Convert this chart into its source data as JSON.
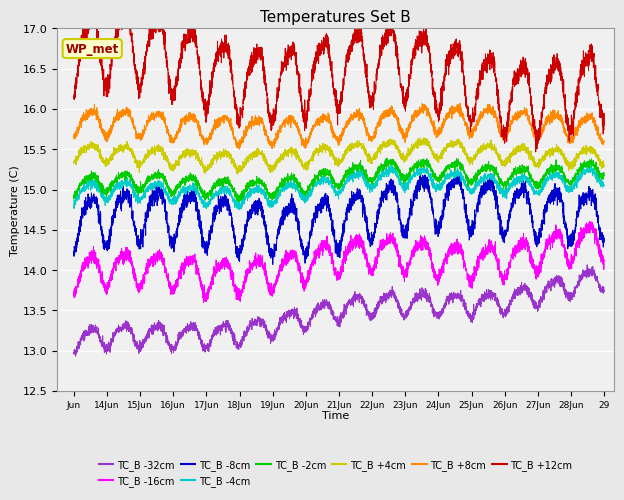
{
  "title": "Temperatures Set B",
  "xlabel": "Time",
  "ylabel": "Temperature (C)",
  "ylim": [
    12.5,
    17.0
  ],
  "yticks": [
    12.5,
    13.0,
    13.5,
    14.0,
    14.5,
    15.0,
    15.5,
    16.0,
    16.5,
    17.0
  ],
  "xtick_labels": [
    "Jun",
    "14Jun",
    "15Jun",
    "16Jun",
    "17Jun",
    "18Jun",
    "19Jun",
    "20Jun",
    "21Jun",
    "22Jun",
    "23Jun",
    "24Jun",
    "25Jun",
    "26Jun",
    "27Jun",
    "28Jun",
    "29"
  ],
  "series": [
    {
      "label": "TC_B -32cm",
      "color": "#9933CC",
      "base": 13.05,
      "trend": 0.05,
      "amp": 0.13,
      "noise": 0.03,
      "slow_amp": 0.08,
      "slow_period": 8.0,
      "slow_phase": 1.0
    },
    {
      "label": "TC_B -16cm",
      "color": "#FF00FF",
      "base": 13.9,
      "trend": 0.025,
      "amp": 0.2,
      "noise": 0.04,
      "slow_amp": 0.1,
      "slow_period": 7.5,
      "slow_phase": 0.5
    },
    {
      "label": "TC_B -8cm",
      "color": "#0000CC",
      "base": 14.55,
      "trend": 0.018,
      "amp": 0.3,
      "noise": 0.05,
      "slow_amp": 0.12,
      "slow_period": 9.0,
      "slow_phase": 0.2
    },
    {
      "label": "TC_B -4cm",
      "color": "#00CCCC",
      "base": 14.9,
      "trend": 0.018,
      "amp": 0.1,
      "noise": 0.025,
      "slow_amp": 0.08,
      "slow_period": 8.5,
      "slow_phase": 0.8
    },
    {
      "label": "TC_B -2cm",
      "color": "#00CC00",
      "base": 15.0,
      "trend": 0.018,
      "amp": 0.1,
      "noise": 0.025,
      "slow_amp": 0.08,
      "slow_period": 8.5,
      "slow_phase": 0.6
    },
    {
      "label": "TC_B +4cm",
      "color": "#CCCC00",
      "base": 15.4,
      "trend": 0.005,
      "amp": 0.1,
      "noise": 0.025,
      "slow_amp": 0.06,
      "slow_period": 10.0,
      "slow_phase": 1.5
    },
    {
      "label": "TC_B +8cm",
      "color": "#FF8800",
      "base": 15.78,
      "trend": 0.003,
      "amp": 0.15,
      "noise": 0.03,
      "slow_amp": 0.06,
      "slow_period": 10.5,
      "slow_phase": 1.2
    },
    {
      "label": "TC_B +12cm",
      "color": "#CC0000",
      "base": 16.65,
      "trend": -0.022,
      "amp": 0.42,
      "noise": 0.06,
      "slow_amp": 0.18,
      "slow_period": 8.0,
      "slow_phase": 0.3
    }
  ],
  "wp_met_label": "WP_met",
  "wp_met_color": "#CCCC00",
  "wp_met_bg": "#FFFFCC",
  "background_color": "#E8E8E8",
  "plot_bg_color": "#F0F0F0",
  "grid_color": "#FFFFFF",
  "n_points": 3840,
  "days": 16
}
